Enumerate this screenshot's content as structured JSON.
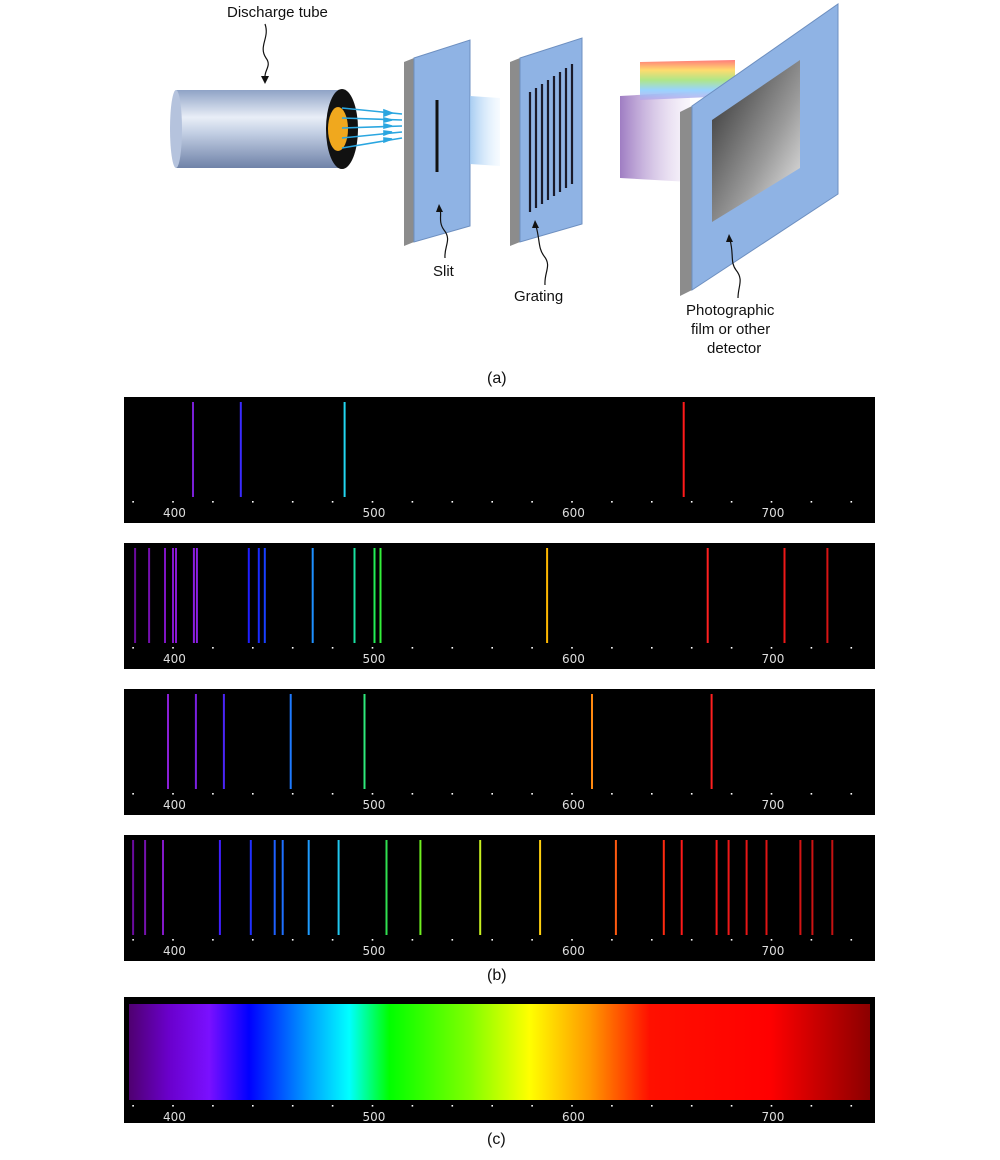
{
  "part_a": {
    "caption": "(a)",
    "labels": {
      "discharge_tube": "Discharge tube",
      "slit": "Slit",
      "grating": "Grating",
      "detector_line1": "Photographic",
      "detector_line2": "film or other",
      "detector_line3": "detector"
    }
  },
  "part_b": {
    "caption": "(b)",
    "tick_labels": [
      "400",
      "500",
      "600",
      "700"
    ],
    "spectra": [
      {
        "lines": [
          {
            "nm": 410,
            "color": "#7a1fd6"
          },
          {
            "nm": 434,
            "color": "#3a2bff"
          },
          {
            "nm": 486,
            "color": "#22d6f0"
          },
          {
            "nm": 656,
            "color": "#ff1a1a"
          }
        ]
      },
      {
        "lines": [
          {
            "nm": 381,
            "color": "#6a0a9e"
          },
          {
            "nm": 388,
            "color": "#750fb0"
          },
          {
            "nm": 396,
            "color": "#8014c4"
          },
          {
            "nm": 400,
            "color": "#8516cc"
          },
          {
            "nm": 401.5,
            "color": "#8818d2"
          },
          {
            "nm": 410.5,
            "color": "#8a1de0"
          },
          {
            "nm": 412,
            "color": "#8a1fe2"
          },
          {
            "nm": 438,
            "color": "#1f1fff"
          },
          {
            "nm": 443,
            "color": "#1a2cff"
          },
          {
            "nm": 446,
            "color": "#1840ff"
          },
          {
            "nm": 470,
            "color": "#1e90ff"
          },
          {
            "nm": 491,
            "color": "#19e0a0"
          },
          {
            "nm": 501,
            "color": "#22ee55"
          },
          {
            "nm": 504,
            "color": "#33f03a"
          },
          {
            "nm": 587.5,
            "color": "#ffb800"
          },
          {
            "nm": 668,
            "color": "#ff2020"
          },
          {
            "nm": 706.5,
            "color": "#ee1818"
          },
          {
            "nm": 728,
            "color": "#d81414"
          }
        ]
      },
      {
        "lines": [
          {
            "nm": 397.5,
            "color": "#8a1fd6"
          },
          {
            "nm": 411.5,
            "color": "#7a20e0"
          },
          {
            "nm": 425.5,
            "color": "#4a25f5"
          },
          {
            "nm": 459,
            "color": "#1e7aff"
          },
          {
            "nm": 496,
            "color": "#2ee87a"
          },
          {
            "nm": 610,
            "color": "#ff8a10"
          },
          {
            "nm": 670,
            "color": "#ff2020"
          }
        ]
      },
      {
        "lines": [
          {
            "nm": 380,
            "color": "#6a0a9e"
          },
          {
            "nm": 386,
            "color": "#7512ae"
          },
          {
            "nm": 395,
            "color": "#8418c8"
          },
          {
            "nm": 423.5,
            "color": "#4020ff"
          },
          {
            "nm": 439,
            "color": "#2030ff"
          },
          {
            "nm": 451,
            "color": "#1e60ff"
          },
          {
            "nm": 455,
            "color": "#1e70ff"
          },
          {
            "nm": 468,
            "color": "#1e9cff"
          },
          {
            "nm": 483,
            "color": "#20c8f0"
          },
          {
            "nm": 507,
            "color": "#30e050"
          },
          {
            "nm": 524,
            "color": "#70f020"
          },
          {
            "nm": 554,
            "color": "#c8f020"
          },
          {
            "nm": 584,
            "color": "#ffd010"
          },
          {
            "nm": 622,
            "color": "#ff5a10"
          },
          {
            "nm": 646,
            "color": "#ff2a10"
          },
          {
            "nm": 655,
            "color": "#ff1a1a"
          },
          {
            "nm": 672.5,
            "color": "#f51818"
          },
          {
            "nm": 678.5,
            "color": "#f01818"
          },
          {
            "nm": 687.5,
            "color": "#e81616"
          },
          {
            "nm": 697.5,
            "color": "#e01515"
          },
          {
            "nm": 714.5,
            "color": "#d41414"
          },
          {
            "nm": 720.5,
            "color": "#cc1313"
          },
          {
            "nm": 730.5,
            "color": "#c41212"
          }
        ]
      }
    ]
  },
  "part_c": {
    "caption": "(c)",
    "tick_labels": [
      "400",
      "500",
      "600",
      "700"
    ],
    "gradient_stops": [
      {
        "nm": 380,
        "color": "#4f0070"
      },
      {
        "nm": 400,
        "color": "#6a00cc"
      },
      {
        "nm": 420,
        "color": "#7a10ff"
      },
      {
        "nm": 440,
        "color": "#0000ff"
      },
      {
        "nm": 470,
        "color": "#00a0ff"
      },
      {
        "nm": 490,
        "color": "#00ffff"
      },
      {
        "nm": 510,
        "color": "#00ff00"
      },
      {
        "nm": 550,
        "color": "#80ff00"
      },
      {
        "nm": 580,
        "color": "#ffff00"
      },
      {
        "nm": 610,
        "color": "#ff9900"
      },
      {
        "nm": 640,
        "color": "#ff1000"
      },
      {
        "nm": 700,
        "color": "#ff0000"
      },
      {
        "nm": 750,
        "color": "#8b0000"
      }
    ]
  }
}
